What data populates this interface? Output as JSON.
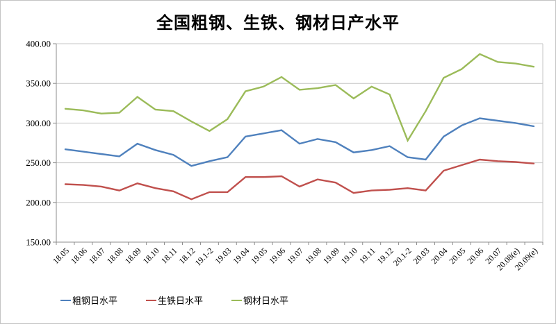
{
  "chart_data": {
    "type": "line",
    "title": "全国粗钢、生铁、钢材日产水平",
    "categories": [
      "18.05",
      "18.06",
      "18.07",
      "18.08",
      "18.09",
      "18.10",
      "18.11",
      "18.12",
      "19.1-2",
      "19.03",
      "19.04",
      "19.05",
      "19.06",
      "19.07",
      "19.08",
      "19.09",
      "19.10",
      "19.11",
      "19.12",
      "20.1-2",
      "20.03",
      "20.04",
      "20.05",
      "20.06",
      "20.07",
      "20.08(e)",
      "20.09(e)"
    ],
    "series": [
      {
        "name": "粗钢日水平",
        "color": "#4F81BD",
        "values": [
          267,
          264,
          261,
          258,
          274,
          266,
          260,
          246,
          252,
          257,
          283,
          287,
          291,
          274,
          280,
          276,
          263,
          266,
          271,
          257,
          254,
          283,
          297,
          306,
          303,
          300,
          296
        ]
      },
      {
        "name": "生铁日水平",
        "color": "#C0504D",
        "values": [
          223,
          222,
          220,
          215,
          224,
          218,
          214,
          204,
          213,
          213,
          232,
          232,
          233,
          220,
          229,
          225,
          212,
          215,
          216,
          218,
          215,
          240,
          247,
          254,
          252,
          251,
          249
        ]
      },
      {
        "name": "钢材日水平",
        "color": "#9BBB59",
        "values": [
          318,
          316,
          312,
          313,
          333,
          317,
          315,
          302,
          290,
          305,
          340,
          346,
          358,
          342,
          344,
          348,
          331,
          346,
          336,
          278,
          315,
          357,
          368,
          387,
          377,
          375,
          371
        ]
      }
    ],
    "xlabel": "",
    "ylabel": "",
    "ylim": [
      150,
      400
    ],
    "ytick_step": 50,
    "ytick_labels": [
      "150.00",
      "200.00",
      "250.00",
      "300.00",
      "350.00",
      "400.00"
    ],
    "grid": "horizontal",
    "legend_position": "bottom"
  },
  "style_colors": {
    "gridline": "#c6c6c6",
    "axis": "#8c8c8c",
    "frame_border": "#c3c3c3",
    "background": "#ffffff",
    "text": "#000000"
  }
}
